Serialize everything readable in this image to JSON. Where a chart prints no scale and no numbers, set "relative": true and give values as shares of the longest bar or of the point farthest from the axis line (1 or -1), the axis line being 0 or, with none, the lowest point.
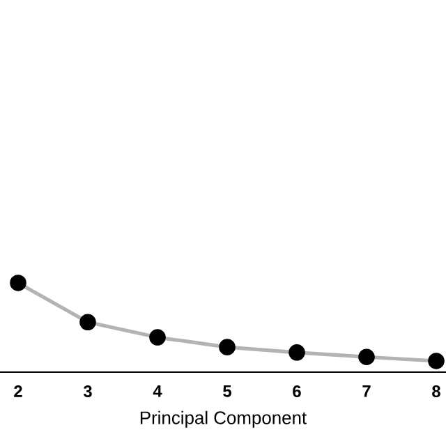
{
  "chart_data": {
    "type": "line",
    "relative": true,
    "xlabel": "Principal Component",
    "categories": [
      null,
      "2",
      "3",
      "4",
      "5",
      "6",
      "7",
      "8",
      null
    ],
    "series": [
      {
        "color": "#b3b3b3",
        "values": [
          null,
          1.0,
          0.56,
          0.39,
          0.28,
          0.22,
          0.17,
          0.125,
          null
        ]
      }
    ],
    "marker": "circle",
    "line_style": "solid"
  }
}
